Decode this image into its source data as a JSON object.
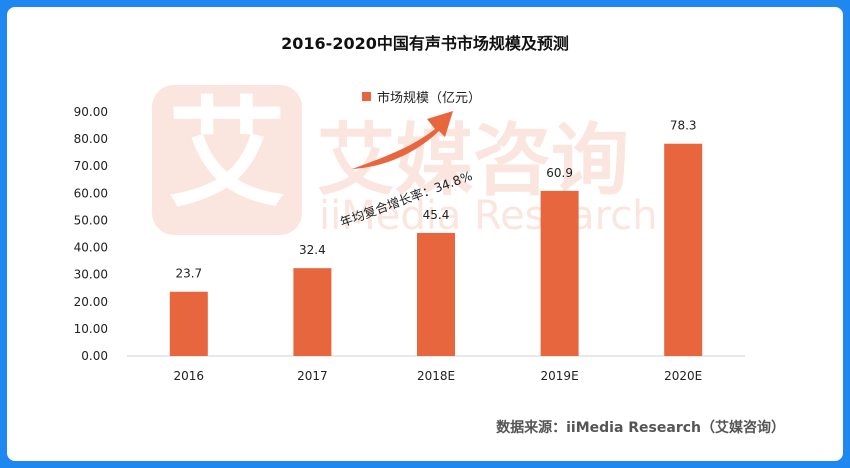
{
  "title": "2016-2020中国有声书市场规模及预测",
  "source": "数据来源：iiMedia Research（艾媒咨询）",
  "watermark": {
    "logo_text": "艾",
    "cn_text": "艾媒咨询",
    "en_text": "iiMedia Research"
  },
  "annotation": "年均复合增长率：34.8%",
  "colors": {
    "bar": "#e8663d",
    "border": "#1e88f0",
    "arrow": "#e8663d"
  },
  "chart_data": {
    "type": "bar",
    "title": "2016-2020中国有声书市场规模及预测",
    "categories": [
      "2016",
      "2017",
      "2018E",
      "2019E",
      "2020E"
    ],
    "series": [
      {
        "name": "市场规模（亿元）",
        "values": [
          23.7,
          32.4,
          45.4,
          60.9,
          78.3
        ]
      }
    ],
    "data_labels": [
      "23.7",
      "32.4",
      "45.4",
      "60.9",
      "78.3"
    ],
    "y_ticks": [
      "0.00",
      "10.00",
      "20.00",
      "30.00",
      "40.00",
      "50.00",
      "60.00",
      "70.00",
      "80.00",
      "90.00"
    ],
    "ylim": [
      0,
      90
    ],
    "grid": false,
    "legend_position": "top"
  }
}
